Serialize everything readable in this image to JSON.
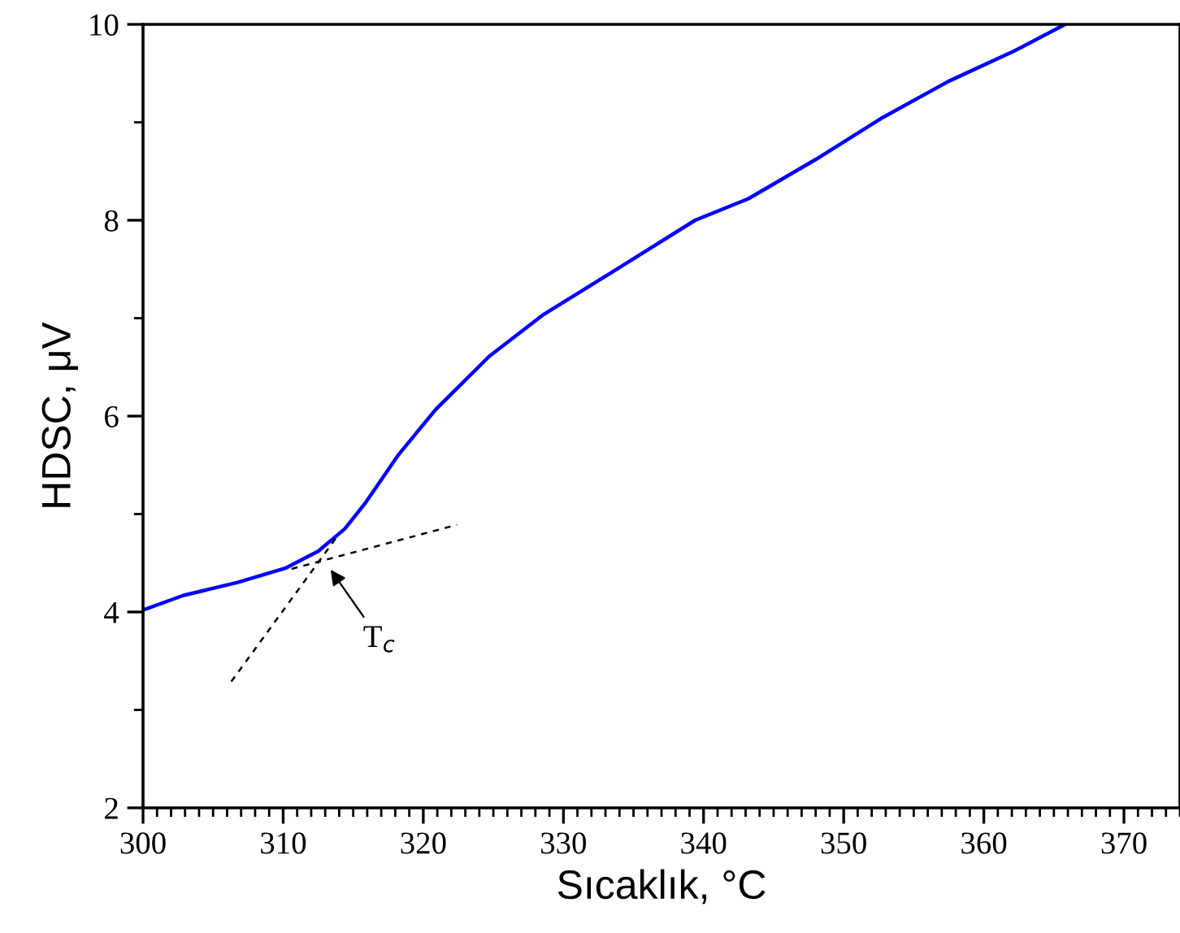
{
  "chart_data": {
    "type": "line",
    "xlabel": "Sıcaklık, °C",
    "ylabel": "HDSC, μV",
    "xlim": [
      300,
      374
    ],
    "ylim": [
      2,
      10
    ],
    "xticks": [
      300,
      310,
      320,
      330,
      340,
      350,
      360,
      370
    ],
    "yticks": [
      2,
      4,
      6,
      8,
      10
    ],
    "grid": false,
    "legend": false,
    "marker": "none",
    "series": [
      {
        "color": "#0000ff",
        "line_style": "solid",
        "x": [
          300,
          302.9,
          306.7,
          310.2,
          312.5,
          314.4,
          315.9,
          318.2,
          320.9,
          324.7,
          328.5,
          334.7,
          339.4,
          343.2,
          348.0,
          352.8,
          357.5,
          362.2,
          365.8
        ],
        "values": [
          4.02,
          4.17,
          4.3,
          4.45,
          4.62,
          4.85,
          5.12,
          5.6,
          6.07,
          6.61,
          7.03,
          7.58,
          8.0,
          8.22,
          8.62,
          9.05,
          9.42,
          9.73,
          10.0
        ]
      },
      {
        "color": "#000000",
        "line_style": "dotted",
        "x": [
          306.3,
          314.0
        ],
        "values": [
          3.29,
          4.8
        ]
      },
      {
        "color": "#000000",
        "line_style": "dotted",
        "x": [
          310.6,
          322.4
        ],
        "values": [
          4.44,
          4.89
        ]
      }
    ],
    "annotations": [
      {
        "text": "T$_{c}$",
        "x": 313.2,
        "y": 4.47
      }
    ]
  }
}
